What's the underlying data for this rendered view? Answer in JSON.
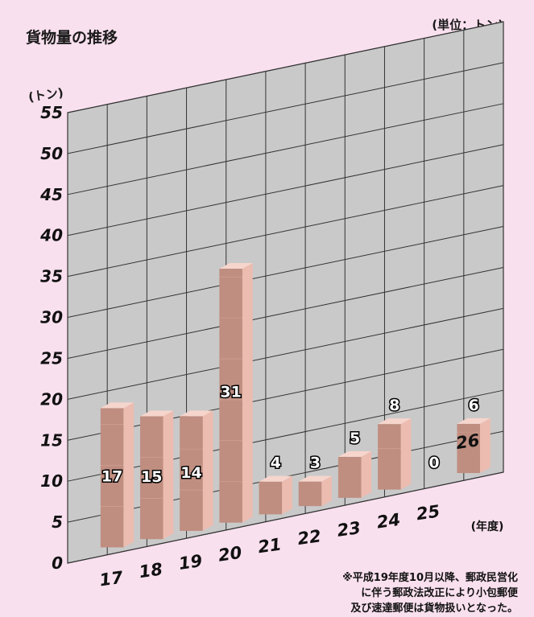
{
  "chart_data": {
    "type": "bar",
    "title": "貨物量の推移",
    "unit_label": "(単位：トン)",
    "ylabel": "(トン)",
    "xlabel": "(年度)",
    "categories": [
      "17",
      "18",
      "19",
      "20",
      "21",
      "22",
      "23",
      "24",
      "25",
      "26"
    ],
    "values": [
      17,
      15,
      14,
      31,
      4,
      3,
      5,
      8,
      0,
      6
    ],
    "ylim": [
      0,
      55
    ],
    "yticks": [
      0,
      5,
      10,
      15,
      20,
      25,
      30,
      35,
      40,
      45,
      50,
      55
    ],
    "grid": true,
    "three_d": true,
    "colors": {
      "background": "#f9e0ee",
      "wall": "#c9c9c9",
      "bar_front": "#bf8e80",
      "bar_side": "#ecbcb0",
      "bar_top": "#f6d5cc"
    }
  },
  "footnote": [
    "※平成19年度10月以降、郵政民営化",
    "に伴う郵政法改正により小包郵便",
    "及び速達郵便は貨物扱いとなった。"
  ]
}
